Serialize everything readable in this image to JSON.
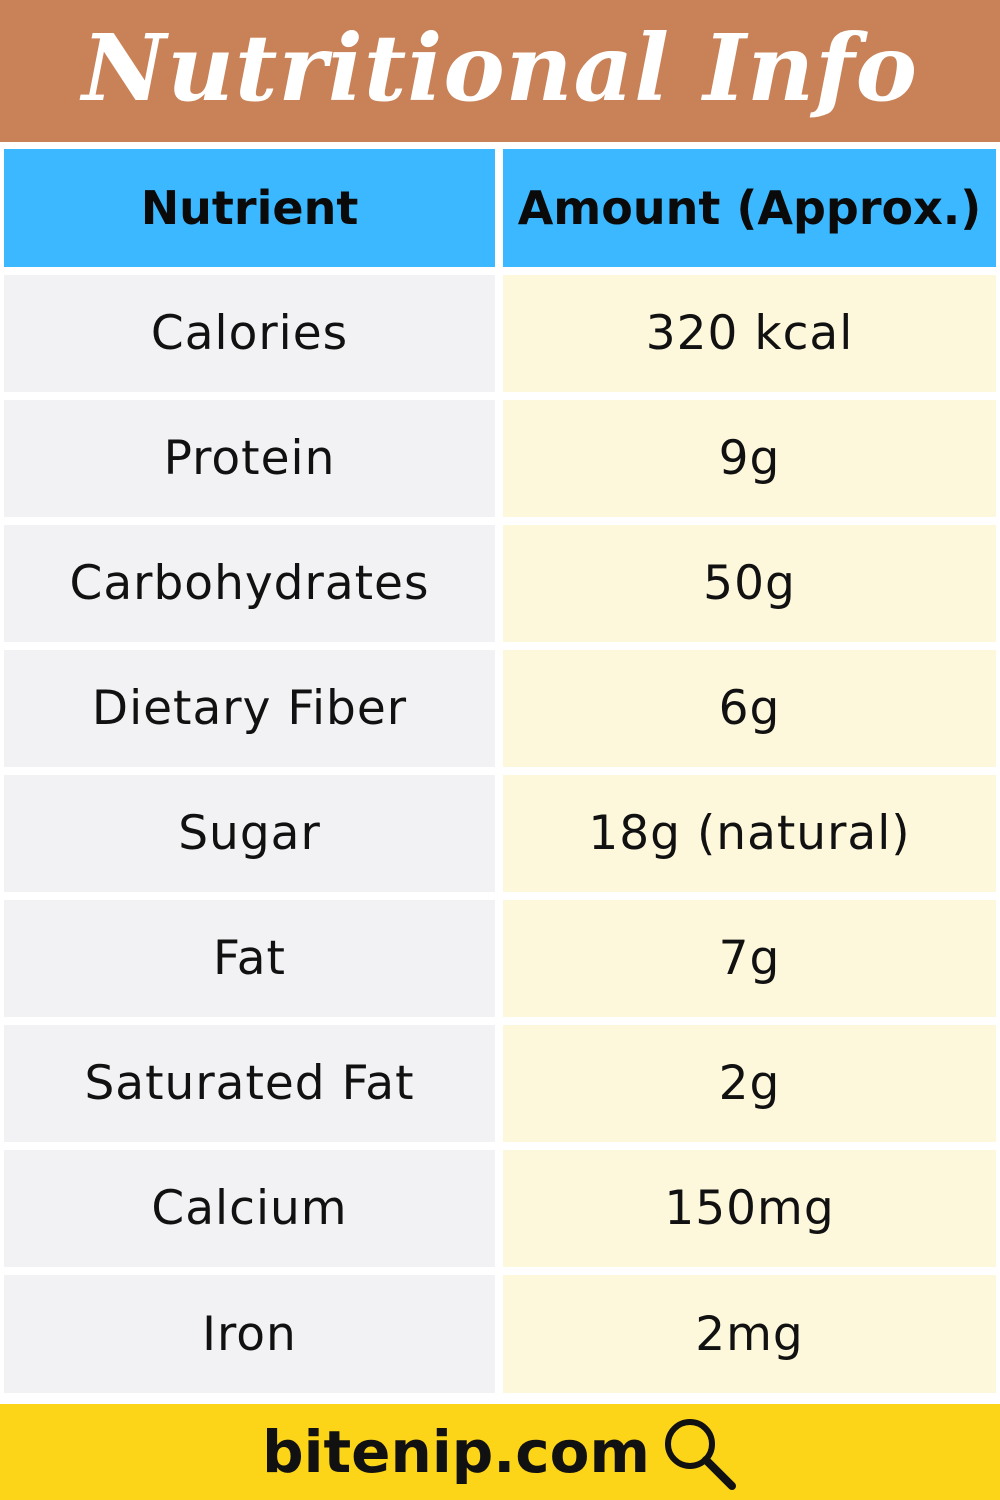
{
  "title": "Nutritional Info",
  "table": {
    "headers": [
      "Nutrient",
      "Amount (Approx.)"
    ],
    "rows": [
      {
        "nutrient": "Calories",
        "amount": "320 kcal"
      },
      {
        "nutrient": "Protein",
        "amount": "9g"
      },
      {
        "nutrient": "Carbohydrates",
        "amount": "50g"
      },
      {
        "nutrient": "Dietary Fiber",
        "amount": "6g"
      },
      {
        "nutrient": "Sugar",
        "amount": "18g (natural)"
      },
      {
        "nutrient": "Fat",
        "amount": "7g"
      },
      {
        "nutrient": "Saturated Fat",
        "amount": "2g"
      },
      {
        "nutrient": "Calcium",
        "amount": "150mg"
      },
      {
        "nutrient": "Iron",
        "amount": "2mg"
      }
    ]
  },
  "footer": {
    "site": "bitenip.com",
    "icon": "search-icon"
  },
  "colors": {
    "title_bg": "#c98257",
    "header_bg": "#3bb8ff",
    "left_col_bg": "#f2f1f4",
    "right_col_bg": "#fdf7dc",
    "footer_bg": "#fcd418"
  }
}
